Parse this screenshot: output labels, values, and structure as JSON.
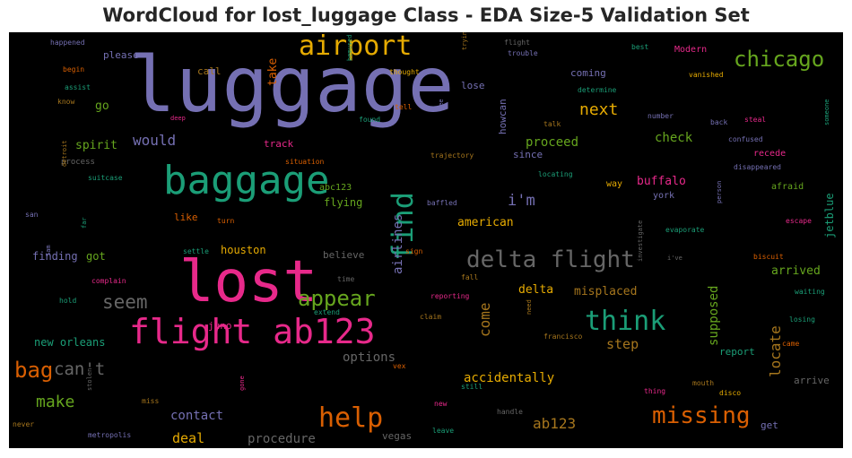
{
  "title": "WordCloud for lost_luggage Class - EDA Size-5 Validation Set",
  "chart_data": {
    "type": "wordcloud",
    "title": "WordCloud for lost_luggage Class - EDA Size-5 Validation Set",
    "background": "#000000",
    "palette": {
      "purple": "#7570b3",
      "green": "#1b9e77",
      "orange": "#d95f02",
      "pink": "#e7298a",
      "lime": "#66a61e",
      "gold": "#e6ab02",
      "brown": "#a6761d",
      "gray": "#666666"
    },
    "words": [
      {
        "text": "luggage",
        "weight": 1.0,
        "color": "purple"
      },
      {
        "text": "lost",
        "weight": 0.78,
        "color": "pink"
      },
      {
        "text": "baggage",
        "weight": 0.55,
        "color": "green"
      },
      {
        "text": "flight ab123",
        "weight": 0.5,
        "color": "pink"
      },
      {
        "text": "airport",
        "weight": 0.42,
        "color": "gold"
      },
      {
        "text": "delta flight",
        "weight": 0.38,
        "color": "gray"
      },
      {
        "text": "help",
        "weight": 0.4,
        "color": "orange"
      },
      {
        "text": "find",
        "weight": 0.4,
        "color": "green"
      },
      {
        "text": "think",
        "weight": 0.38,
        "color": "green"
      },
      {
        "text": "missing",
        "weight": 0.35,
        "color": "orange"
      },
      {
        "text": "chicago",
        "weight": 0.32,
        "color": "lime"
      },
      {
        "text": "appear",
        "weight": 0.33,
        "color": "lime"
      },
      {
        "text": "bag",
        "weight": 0.33,
        "color": "orange"
      },
      {
        "text": "can't",
        "weight": 0.27,
        "color": "gray"
      },
      {
        "text": "seem",
        "weight": 0.28,
        "color": "gray"
      },
      {
        "text": "make",
        "weight": 0.24,
        "color": "lime"
      },
      {
        "text": "next",
        "weight": 0.24,
        "color": "gold"
      },
      {
        "text": "ab123",
        "weight": 0.22,
        "color": "brown"
      },
      {
        "text": "locate",
        "weight": 0.21,
        "color": "brown"
      },
      {
        "text": "come",
        "weight": 0.2,
        "color": "brown"
      },
      {
        "text": "would",
        "weight": 0.2,
        "color": "purple"
      },
      {
        "text": "deal",
        "weight": 0.2,
        "color": "gold"
      },
      {
        "text": "step",
        "weight": 0.2,
        "color": "brown"
      },
      {
        "text": "i'm",
        "weight": 0.2,
        "color": "purple"
      },
      {
        "text": "procedure",
        "weight": 0.17,
        "color": "gray"
      },
      {
        "text": "options",
        "weight": 0.17,
        "color": "gray"
      },
      {
        "text": "airlines",
        "weight": 0.17,
        "color": "purple"
      },
      {
        "text": "supposed",
        "weight": 0.17,
        "color": "lime"
      },
      {
        "text": "accidentally",
        "weight": 0.17,
        "color": "gold"
      },
      {
        "text": "contact",
        "weight": 0.17,
        "color": "purple"
      },
      {
        "text": "take",
        "weight": 0.16,
        "color": "orange"
      },
      {
        "text": "proceed",
        "weight": 0.17,
        "color": "lime"
      },
      {
        "text": "check",
        "weight": 0.17,
        "color": "lime"
      },
      {
        "text": "buffalo",
        "weight": 0.16,
        "color": "pink"
      },
      {
        "text": "misplaced",
        "weight": 0.16,
        "color": "brown"
      },
      {
        "text": "arrived",
        "weight": 0.16,
        "color": "lime"
      },
      {
        "text": "american",
        "weight": 0.15,
        "color": "gold"
      },
      {
        "text": "delta",
        "weight": 0.14,
        "color": "gold"
      },
      {
        "text": "spirit",
        "weight": 0.14,
        "color": "lime"
      },
      {
        "text": "go",
        "weight": 0.15,
        "color": "lime"
      },
      {
        "text": "please",
        "weight": 0.13,
        "color": "purple"
      },
      {
        "text": "new orleans",
        "weight": 0.14,
        "color": "green"
      },
      {
        "text": "houston",
        "weight": 0.14,
        "color": "gold"
      },
      {
        "text": "flying",
        "weight": 0.14,
        "color": "lime"
      },
      {
        "text": "finding",
        "weight": 0.13,
        "color": "purple"
      },
      {
        "text": "got",
        "weight": 0.13,
        "color": "lime"
      },
      {
        "text": "track",
        "weight": 0.13,
        "color": "pink"
      },
      {
        "text": "howcan",
        "weight": 0.13,
        "color": "purple"
      },
      {
        "text": "jetblue",
        "weight": 0.13,
        "color": "green"
      },
      {
        "text": "coming",
        "weight": 0.12,
        "color": "purple"
      },
      {
        "text": "lose",
        "weight": 0.12,
        "color": "purple"
      },
      {
        "text": "call",
        "weight": 0.12,
        "color": "brown"
      },
      {
        "text": "since",
        "weight": 0.12,
        "color": "purple"
      },
      {
        "text": "believe",
        "weight": 0.12,
        "color": "gray"
      },
      {
        "text": "report",
        "weight": 0.12,
        "color": "green"
      },
      {
        "text": "arrive",
        "weight": 0.12,
        "color": "gray"
      },
      {
        "text": "juno",
        "weight": 0.12,
        "color": "pink"
      },
      {
        "text": "get",
        "weight": 0.12,
        "color": "purple"
      },
      {
        "text": "vegas",
        "weight": 0.12,
        "color": "gray"
      },
      {
        "text": "like",
        "weight": 0.12,
        "color": "orange"
      },
      {
        "text": "abc123",
        "weight": 0.11,
        "color": "lime"
      },
      {
        "text": "way",
        "weight": 0.11,
        "color": "gold"
      },
      {
        "text": "york",
        "weight": 0.11,
        "color": "purple"
      },
      {
        "text": "afraid",
        "weight": 0.11,
        "color": "lime"
      },
      {
        "text": "recede",
        "weight": 0.11,
        "color": "pink"
      },
      {
        "text": "process",
        "weight": 0.09,
        "color": "gray"
      },
      {
        "text": "flight",
        "weight": 0.08,
        "color": "gray"
      },
      {
        "text": "trouble",
        "weight": 0.08,
        "color": "purple"
      },
      {
        "text": "best",
        "weight": 0.08,
        "color": "green"
      },
      {
        "text": "Modern",
        "weight": 0.09,
        "color": "pink"
      },
      {
        "text": "happened",
        "weight": 0.08,
        "color": "purple"
      },
      {
        "text": "begin",
        "weight": 0.08,
        "color": "orange"
      },
      {
        "text": "assist",
        "weight": 0.08,
        "color": "green"
      },
      {
        "text": "know",
        "weight": 0.07,
        "color": "brown"
      },
      {
        "text": "deep",
        "weight": 0.07,
        "color": "pink"
      },
      {
        "text": "bemused",
        "weight": 0.07,
        "color": "green"
      },
      {
        "text": "thought",
        "weight": 0.08,
        "color": "gold"
      },
      {
        "text": "trying",
        "weight": 0.07,
        "color": "brown"
      },
      {
        "text": "vanished",
        "weight": 0.08,
        "color": "gold"
      },
      {
        "text": "determine",
        "weight": 0.08,
        "color": "green"
      },
      {
        "text": "tell",
        "weight": 0.08,
        "color": "orange"
      },
      {
        "text": "found",
        "weight": 0.08,
        "color": "green"
      },
      {
        "text": "pee",
        "weight": 0.07,
        "color": "purple"
      },
      {
        "text": "talk",
        "weight": 0.08,
        "color": "brown"
      },
      {
        "text": "number",
        "weight": 0.08,
        "color": "purple"
      },
      {
        "text": "back",
        "weight": 0.08,
        "color": "purple"
      },
      {
        "text": "steal",
        "weight": 0.08,
        "color": "pink"
      },
      {
        "text": "someone",
        "weight": 0.07,
        "color": "green"
      },
      {
        "text": "confused",
        "weight": 0.08,
        "color": "purple"
      },
      {
        "text": "situation",
        "weight": 0.08,
        "color": "orange"
      },
      {
        "text": "trajectory",
        "weight": 0.08,
        "color": "brown"
      },
      {
        "text": "locating",
        "weight": 0.08,
        "color": "green"
      },
      {
        "text": "disappeared",
        "weight": 0.08,
        "color": "purple"
      },
      {
        "text": "suitcase",
        "weight": 0.08,
        "color": "green"
      },
      {
        "text": "detroit",
        "weight": 0.07,
        "color": "brown"
      },
      {
        "text": "san",
        "weight": 0.07,
        "color": "purple"
      },
      {
        "text": "far",
        "weight": 0.07,
        "color": "green"
      },
      {
        "text": "baffled",
        "weight": 0.08,
        "color": "purple"
      },
      {
        "text": "turn",
        "weight": 0.08,
        "color": "orange"
      },
      {
        "text": "evaporate",
        "weight": 0.08,
        "color": "green"
      },
      {
        "text": "person",
        "weight": 0.07,
        "color": "purple"
      },
      {
        "text": "escape",
        "weight": 0.08,
        "color": "pink"
      },
      {
        "text": "settle",
        "weight": 0.08,
        "color": "green"
      },
      {
        "text": "sign",
        "weight": 0.08,
        "color": "orange"
      },
      {
        "text": "investigate",
        "weight": 0.07,
        "color": "gray"
      },
      {
        "text": "i've",
        "weight": 0.07,
        "color": "gray"
      },
      {
        "text": "biscuit",
        "weight": 0.08,
        "color": "orange"
      },
      {
        "text": "Sam",
        "weight": 0.07,
        "color": "purple"
      },
      {
        "text": "complain",
        "weight": 0.08,
        "color": "pink"
      },
      {
        "text": "time",
        "weight": 0.08,
        "color": "gray"
      },
      {
        "text": "fall",
        "weight": 0.08,
        "color": "brown"
      },
      {
        "text": "waiting",
        "weight": 0.08,
        "color": "green"
      },
      {
        "text": "hold",
        "weight": 0.08,
        "color": "green"
      },
      {
        "text": "extend",
        "weight": 0.08,
        "color": "green"
      },
      {
        "text": "reporting",
        "weight": 0.08,
        "color": "pink"
      },
      {
        "text": "claim",
        "weight": 0.08,
        "color": "brown"
      },
      {
        "text": "need",
        "weight": 0.08,
        "color": "brown"
      },
      {
        "text": "francisco",
        "weight": 0.08,
        "color": "brown"
      },
      {
        "text": "losing",
        "weight": 0.08,
        "color": "green"
      },
      {
        "text": "came",
        "weight": 0.08,
        "color": "orange"
      },
      {
        "text": "vex",
        "weight": 0.08,
        "color": "orange"
      },
      {
        "text": "mouth",
        "weight": 0.08,
        "color": "brown"
      },
      {
        "text": "thing",
        "weight": 0.08,
        "color": "pink"
      },
      {
        "text": "disco",
        "weight": 0.08,
        "color": "gold"
      },
      {
        "text": "stolen",
        "weight": 0.07,
        "color": "gray"
      },
      {
        "text": "miss",
        "weight": 0.08,
        "color": "brown"
      },
      {
        "text": "gone",
        "weight": 0.07,
        "color": "pink"
      },
      {
        "text": "still",
        "weight": 0.08,
        "color": "green"
      },
      {
        "text": "new",
        "weight": 0.08,
        "color": "pink"
      },
      {
        "text": "handle",
        "weight": 0.08,
        "color": "gray"
      },
      {
        "text": "never",
        "weight": 0.08,
        "color": "brown"
      },
      {
        "text": "metropolis",
        "weight": 0.08,
        "color": "purple"
      },
      {
        "text": "leave",
        "weight": 0.08,
        "color": "green"
      }
    ]
  }
}
